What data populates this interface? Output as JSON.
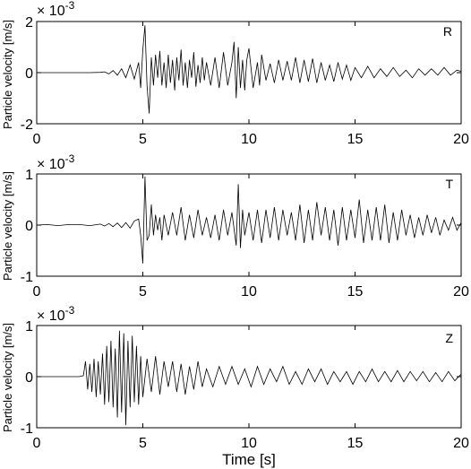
{
  "chart_data": [
    {
      "type": "line",
      "channel": "R",
      "ylabel": "Particle velocity [m/s]",
      "xlabel": "",
      "exponent_base": "× 10",
      "exponent_power": "-3",
      "xlim": [
        0,
        20
      ],
      "ylim": [
        -2,
        2
      ],
      "xticks": [
        0,
        5,
        10,
        15,
        20
      ],
      "yticks": [
        -2,
        0,
        2
      ],
      "grid": false,
      "series": [
        {
          "x": [
            0,
            0.5,
            1,
            1.5,
            2,
            2.5,
            3,
            3.2,
            3.4,
            3.6,
            3.8,
            4.0,
            4.2,
            4.4,
            4.6,
            4.8,
            4.9,
            5.0,
            5.1,
            5.2,
            5.3,
            5.4,
            5.5,
            5.6,
            5.7,
            5.8,
            5.9,
            6.0,
            6.1,
            6.2,
            6.3,
            6.4,
            6.5,
            6.6,
            6.7,
            6.8,
            6.9,
            7.0,
            7.1,
            7.2,
            7.3,
            7.4,
            7.5,
            7.6,
            7.7,
            7.8,
            7.9,
            8.0,
            8.2,
            8.4,
            8.6,
            8.8,
            9.0,
            9.2,
            9.3,
            9.4,
            9.5,
            9.6,
            9.7,
            9.8,
            9.9,
            10.0,
            10.2,
            10.4,
            10.5,
            10.6,
            10.8,
            11.0,
            11.2,
            11.4,
            11.6,
            11.8,
            12.0,
            12.2,
            12.4,
            12.6,
            12.8,
            13.0,
            13.2,
            13.4,
            13.6,
            13.8,
            14.0,
            14.2,
            14.4,
            14.6,
            14.8,
            15.0,
            15.3,
            15.6,
            15.9,
            16.2,
            16.5,
            16.8,
            17.1,
            17.4,
            17.7,
            18.0,
            18.3,
            18.6,
            18.9,
            19.2,
            19.5,
            19.8,
            20.0
          ],
          "y": [
            0,
            0,
            0,
            0,
            0,
            0,
            0.01,
            0.03,
            -0.05,
            0.08,
            -0.1,
            0.15,
            -0.2,
            0.3,
            -0.25,
            0.4,
            -0.6,
            0.9,
            1.85,
            -0.5,
            -1.6,
            0.6,
            -0.5,
            0.7,
            -0.2,
            0.85,
            -0.5,
            0.4,
            -0.6,
            0.7,
            -0.4,
            0.5,
            -0.7,
            0.6,
            -0.3,
            0.9,
            -0.5,
            0.4,
            -0.6,
            0.5,
            -0.2,
            0.8,
            -0.55,
            0.3,
            -0.4,
            0.6,
            -0.3,
            0.4,
            -0.5,
            0.6,
            -0.6,
            0.8,
            -0.5,
            0.4,
            1.2,
            -1.0,
            1.0,
            -0.6,
            0.5,
            -0.7,
            0.5,
            0.95,
            -0.6,
            0.4,
            -0.5,
            0.7,
            -0.3,
            0.35,
            -0.4,
            0.5,
            -0.3,
            0.45,
            -0.3,
            0.6,
            -0.4,
            0.5,
            -0.35,
            0.55,
            -0.4,
            0.4,
            -0.3,
            0.3,
            -0.35,
            0.4,
            -0.25,
            0.3,
            -0.3,
            0.2,
            -0.2,
            0.25,
            -0.2,
            0.15,
            -0.15,
            0.2,
            -0.15,
            0.1,
            -0.2,
            0.15,
            -0.1,
            0.15,
            -0.1,
            0.2,
            -0.1,
            0.1,
            0.05
          ]
        }
      ]
    },
    {
      "type": "line",
      "channel": "T",
      "ylabel": "Particle velocity [m/s]",
      "xlabel": "",
      "exponent_base": "× 10",
      "exponent_power": "-3",
      "xlim": [
        0,
        20
      ],
      "ylim": [
        -1,
        1
      ],
      "xticks": [
        0,
        5,
        10,
        15,
        20
      ],
      "yticks": [
        -1,
        0,
        1
      ],
      "grid": false,
      "series": [
        {
          "x": [
            0,
            0.5,
            1,
            1.5,
            2,
            2.5,
            3,
            3.2,
            3.4,
            3.6,
            3.8,
            4.0,
            4.2,
            4.4,
            4.6,
            4.8,
            4.9,
            5.0,
            5.1,
            5.2,
            5.3,
            5.4,
            5.5,
            5.6,
            5.7,
            5.8,
            5.9,
            6.0,
            6.2,
            6.4,
            6.6,
            6.8,
            7.0,
            7.2,
            7.4,
            7.6,
            7.8,
            8.0,
            8.2,
            8.4,
            8.6,
            8.8,
            9.0,
            9.2,
            9.4,
            9.5,
            9.6,
            9.7,
            9.8,
            10.0,
            10.2,
            10.4,
            10.6,
            10.8,
            11.0,
            11.2,
            11.4,
            11.6,
            11.8,
            12.0,
            12.2,
            12.4,
            12.6,
            12.8,
            13.0,
            13.2,
            13.4,
            13.6,
            13.8,
            14.0,
            14.2,
            14.4,
            14.6,
            14.8,
            15.0,
            15.2,
            15.4,
            15.6,
            15.8,
            16.0,
            16.2,
            16.4,
            16.6,
            16.8,
            17.0,
            17.2,
            17.4,
            17.6,
            17.8,
            18.0,
            18.2,
            18.4,
            18.6,
            18.8,
            19.0,
            19.2,
            19.4,
            19.6,
            19.8,
            20.0
          ],
          "y": [
            0,
            0.01,
            -0.01,
            0.01,
            0.01,
            -0.01,
            0.02,
            -0.02,
            0.03,
            -0.03,
            0.04,
            -0.05,
            0.05,
            -0.06,
            0.08,
            0.12,
            -0.2,
            -0.75,
            0.95,
            -0.3,
            -0.2,
            0.4,
            -0.2,
            0.2,
            -0.1,
            0.15,
            -0.3,
            0.2,
            -0.2,
            0.25,
            -0.2,
            0.35,
            -0.3,
            0.2,
            -0.25,
            0.3,
            -0.2,
            0.15,
            -0.25,
            0.2,
            -0.3,
            0.3,
            -0.2,
            0.25,
            -0.4,
            0.8,
            -0.45,
            0.3,
            -0.2,
            0.25,
            -0.3,
            0.3,
            -0.35,
            0.3,
            -0.25,
            0.35,
            -0.3,
            0.3,
            -0.2,
            0.25,
            -0.3,
            0.4,
            -0.35,
            0.3,
            -0.3,
            0.45,
            -0.2,
            0.35,
            -0.3,
            0.3,
            -0.4,
            0.35,
            -0.3,
            0.3,
            -0.25,
            0.5,
            -0.35,
            0.3,
            -0.3,
            0.35,
            -0.3,
            0.4,
            -0.35,
            0.25,
            -0.3,
            0.3,
            -0.2,
            0.2,
            -0.25,
            0.15,
            -0.2,
            0.2,
            -0.15,
            0.15,
            -0.2,
            0.1,
            -0.1,
            0.15,
            -0.1,
            0.05
          ]
        }
      ]
    },
    {
      "type": "line",
      "channel": "Z",
      "ylabel": "Particle velocity [m/s]",
      "xlabel": "Time [s]",
      "exponent_base": "× 10",
      "exponent_power": "-3",
      "xlim": [
        0,
        20
      ],
      "ylim": [
        -1,
        1
      ],
      "xticks": [
        0,
        5,
        10,
        15,
        20
      ],
      "yticks": [
        -1,
        0,
        1
      ],
      "grid": false,
      "series": [
        {
          "x": [
            0,
            0.5,
            1,
            1.5,
            2,
            2.2,
            2.3,
            2.4,
            2.5,
            2.6,
            2.7,
            2.8,
            2.9,
            3.0,
            3.1,
            3.2,
            3.3,
            3.4,
            3.5,
            3.6,
            3.7,
            3.8,
            3.9,
            4.0,
            4.1,
            4.2,
            4.3,
            4.4,
            4.5,
            4.6,
            4.7,
            4.8,
            4.9,
            5.0,
            5.2,
            5.4,
            5.6,
            5.8,
            6.0,
            6.2,
            6.4,
            6.6,
            6.8,
            7.0,
            7.2,
            7.4,
            7.6,
            7.8,
            8.0,
            8.3,
            8.6,
            8.9,
            9.2,
            9.5,
            9.8,
            10.1,
            10.4,
            10.7,
            11.0,
            11.3,
            11.6,
            11.9,
            12.2,
            12.5,
            12.8,
            13.1,
            13.4,
            13.7,
            14.0,
            14.3,
            14.6,
            14.9,
            15.2,
            15.5,
            15.8,
            16.1,
            16.4,
            16.7,
            17.0,
            17.3,
            17.6,
            17.9,
            18.2,
            18.5,
            18.8,
            19.1,
            19.4,
            19.7,
            20.0
          ],
          "y": [
            0,
            0,
            0,
            0,
            0,
            0.02,
            0.3,
            -0.25,
            0.25,
            -0.3,
            0.35,
            -0.4,
            0.3,
            -0.35,
            0.45,
            -0.55,
            0.6,
            -0.5,
            0.7,
            -0.6,
            0.55,
            -0.8,
            0.9,
            -0.7,
            0.85,
            -0.95,
            0.7,
            -0.6,
            0.8,
            -0.5,
            0.6,
            -0.55,
            0.4,
            -0.4,
            0.35,
            -0.3,
            0.4,
            -0.35,
            0.3,
            -0.2,
            0.3,
            -0.3,
            0.25,
            -0.35,
            0.2,
            -0.25,
            0.3,
            -0.2,
            0.15,
            -0.2,
            0.2,
            -0.15,
            0.2,
            -0.15,
            0.15,
            -0.2,
            0.2,
            -0.15,
            0.15,
            -0.1,
            0.2,
            -0.15,
            0.1,
            -0.15,
            0.15,
            -0.1,
            0.15,
            -0.15,
            0.1,
            -0.1,
            0.1,
            -0.15,
            0.1,
            -0.1,
            0.15,
            -0.1,
            0.1,
            -0.1,
            0.12,
            -0.1,
            0.1,
            -0.08,
            0.1,
            -0.1,
            0.08,
            -0.1,
            0.1,
            -0.08,
            0.05
          ]
        }
      ]
    }
  ]
}
